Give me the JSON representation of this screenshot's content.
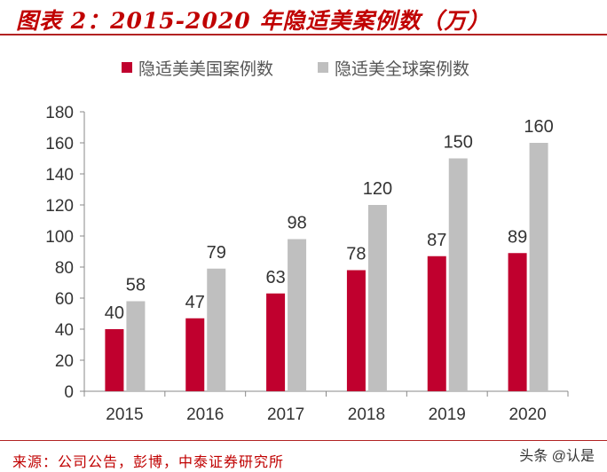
{
  "title": "图表 2：2015-2020 年隐适美案例数（万）",
  "source": "来源：公司公告，彭博，中泰证券研究所",
  "watermark": "头条 @认是",
  "colors": {
    "title": "#C00000",
    "series_us": "#C0002E",
    "series_global": "#BFBFBF"
  },
  "chart_data": {
    "type": "bar",
    "categories": [
      "2015",
      "2016",
      "2017",
      "2018",
      "2019",
      "2020"
    ],
    "series": [
      {
        "name": "隐适美美国案例数",
        "values": [
          40,
          47,
          63,
          78,
          87,
          89
        ],
        "color": "#C0002E"
      },
      {
        "name": "隐适美全球案例数",
        "values": [
          58,
          79,
          98,
          120,
          150,
          160
        ],
        "color": "#BFBFBF"
      }
    ],
    "ylim": [
      0,
      180
    ],
    "yticks": [
      0,
      20,
      40,
      60,
      80,
      100,
      120,
      140,
      160,
      180
    ],
    "grid": false,
    "legend": "top",
    "xlabel": "",
    "ylabel": ""
  }
}
